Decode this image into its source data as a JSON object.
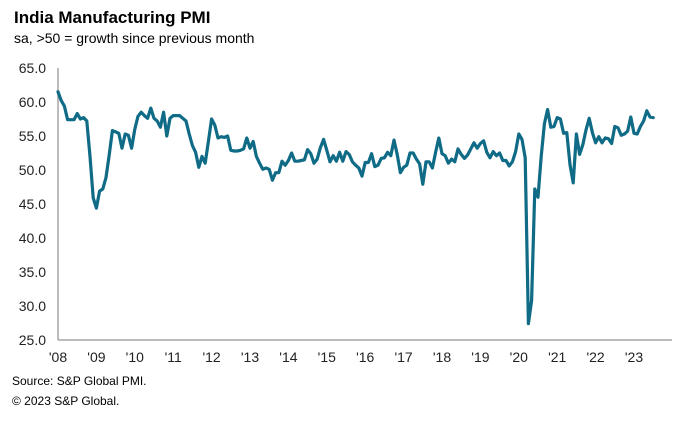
{
  "header": {
    "title": "India Manufacturing PMI",
    "subtitle": "sa, >50 = growth since previous month"
  },
  "footer": {
    "source": "Source: S&P Global PMI.",
    "copyright": "© 2023 S&P Global."
  },
  "colors": {
    "line": "#0f6b86",
    "axis": "#a6a6a6"
  },
  "chart_data": {
    "type": "line",
    "title": "India Manufacturing PMI",
    "subtitle": "sa, >50 = growth since previous month",
    "xlabel": "",
    "ylabel": "",
    "ylim": [
      25,
      65
    ],
    "yticks": [
      "65.0",
      "60.0",
      "55.0",
      "50.0",
      "45.0",
      "40.0",
      "35.0",
      "30.0",
      "25.0"
    ],
    "ytick_values": [
      65,
      60,
      55,
      50,
      45,
      40,
      35,
      30,
      25
    ],
    "xticks": [
      "'08",
      "'09",
      "'10",
      "'11",
      "'12",
      "'13",
      "'14",
      "'15",
      "'16",
      "'17",
      "'18",
      "'19",
      "'20",
      "'21",
      "'22",
      "'23"
    ],
    "x_start": "2008-01",
    "frequency": "monthly",
    "grid": false,
    "legend": "none",
    "series": [
      {
        "name": "India Manufacturing PMI",
        "values": [
          61.5,
          60.2,
          59.4,
          57.4,
          57.4,
          57.4,
          58.3,
          57.5,
          57.7,
          57.2,
          52.0,
          45.9,
          44.4,
          46.9,
          47.2,
          48.9,
          52.2,
          55.8,
          55.6,
          55.4,
          53.2,
          55.3,
          55.1,
          53.2,
          56.0,
          57.9,
          58.5,
          58.0,
          57.6,
          59.1,
          57.6,
          57.2,
          56.3,
          58.5,
          55.0,
          57.6,
          58.0,
          58.0,
          58.0,
          57.6,
          57.2,
          55.3,
          53.6,
          52.6,
          50.4,
          52.0,
          51.0,
          54.2,
          57.5,
          56.6,
          54.7,
          54.9,
          54.8,
          55.0,
          52.9,
          52.8,
          52.8,
          52.9,
          53.1,
          54.7,
          53.2,
          54.2,
          52.0,
          51.0,
          50.1,
          50.3,
          50.1,
          48.5,
          49.6,
          49.6,
          51.3,
          50.7,
          51.4,
          52.5,
          51.3,
          51.3,
          51.4,
          51.5,
          53.0,
          52.4,
          51.0,
          51.6,
          53.3,
          54.5,
          52.9,
          51.2,
          52.1,
          51.3,
          52.6,
          51.3,
          52.7,
          52.3,
          51.2,
          50.7,
          50.3,
          49.1,
          51.1,
          51.1,
          52.4,
          50.5,
          50.7,
          51.7,
          51.8,
          52.6,
          52.1,
          54.4,
          52.3,
          49.6,
          50.4,
          50.7,
          52.5,
          52.5,
          51.6,
          50.9,
          47.9,
          51.2,
          51.2,
          50.3,
          52.6,
          54.7,
          52.4,
          52.1,
          51.0,
          51.6,
          51.2,
          53.1,
          52.3,
          51.7,
          52.2,
          53.1,
          54.0,
          53.2,
          53.9,
          54.3,
          52.6,
          51.8,
          52.7,
          52.1,
          52.5,
          51.4,
          51.4,
          50.6,
          51.2,
          52.7,
          55.3,
          54.5,
          51.8,
          27.4,
          30.8,
          47.2,
          46.0,
          52.0,
          56.8,
          58.9,
          56.3,
          56.4,
          57.7,
          57.5,
          55.4,
          55.5,
          50.8,
          48.1,
          55.3,
          52.3,
          53.7,
          55.9,
          57.6,
          55.5,
          54.0,
          54.9,
          54.0,
          54.7,
          54.6,
          53.9,
          56.4,
          56.2,
          55.1,
          55.3,
          55.7,
          57.8,
          55.4,
          55.3,
          56.4,
          57.2,
          58.7,
          57.8,
          57.7
        ]
      }
    ]
  }
}
